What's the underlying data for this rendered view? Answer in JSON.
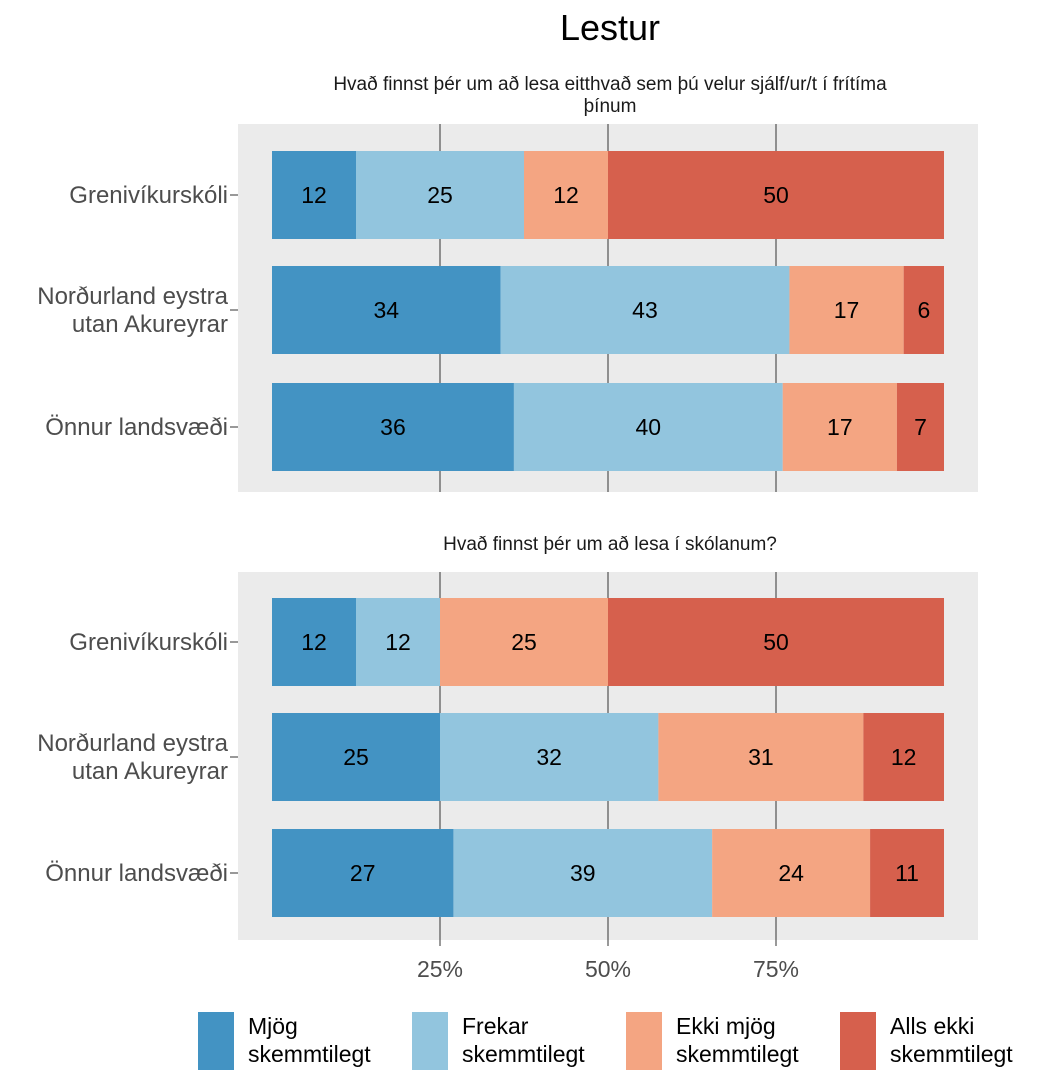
{
  "chart_data": {
    "type": "bar",
    "orientation": "horizontal",
    "stacked": true,
    "title": "Lestur",
    "legend_position": "bottom",
    "x_ticks": [
      "25%",
      "50%",
      "75%"
    ],
    "series_meta": [
      {
        "name": "Mjög skemmtilegt",
        "color": "#4393c3"
      },
      {
        "name": "Frekar skemmtilegt",
        "color": "#92c5de"
      },
      {
        "name": "Ekki mjög skemmtilegt",
        "color": "#f4a582"
      },
      {
        "name": "Alls ekki skemmtilegt",
        "color": "#d6604d"
      }
    ],
    "panels": [
      {
        "subtitle": "Hvað finnst þér um að lesa eitthvað sem þú velur sjálf/ur/t í frítíma þínum",
        "categories": [
          "Grenivíkurskóli",
          "Norðurland eystra utan Akureyrar",
          "Önnur landsvæði"
        ],
        "values": [
          [
            12.5,
            25,
            12.5,
            50
          ],
          [
            34,
            43,
            17,
            6
          ],
          [
            36,
            40,
            17,
            7
          ]
        ],
        "labels": [
          [
            "12",
            "25",
            "12",
            "50"
          ],
          [
            "34",
            "43",
            "17",
            "6"
          ],
          [
            "36",
            "40",
            "17",
            "7"
          ]
        ]
      },
      {
        "subtitle": "Hvað finnst þér um að lesa í skólanum?",
        "categories": [
          "Grenivíkurskóli",
          "Norðurland eystra utan Akureyrar",
          "Önnur landsvæði"
        ],
        "values": [
          [
            12.5,
            12.5,
            25,
            50
          ],
          [
            25,
            32.5,
            30.5,
            12
          ],
          [
            27,
            38.5,
            23.5,
            11
          ]
        ],
        "labels": [
          [
            "12",
            "12",
            "25",
            "50"
          ],
          [
            "25",
            "32",
            "31",
            "12"
          ],
          [
            "27",
            "39",
            "24",
            "11"
          ]
        ]
      }
    ]
  }
}
